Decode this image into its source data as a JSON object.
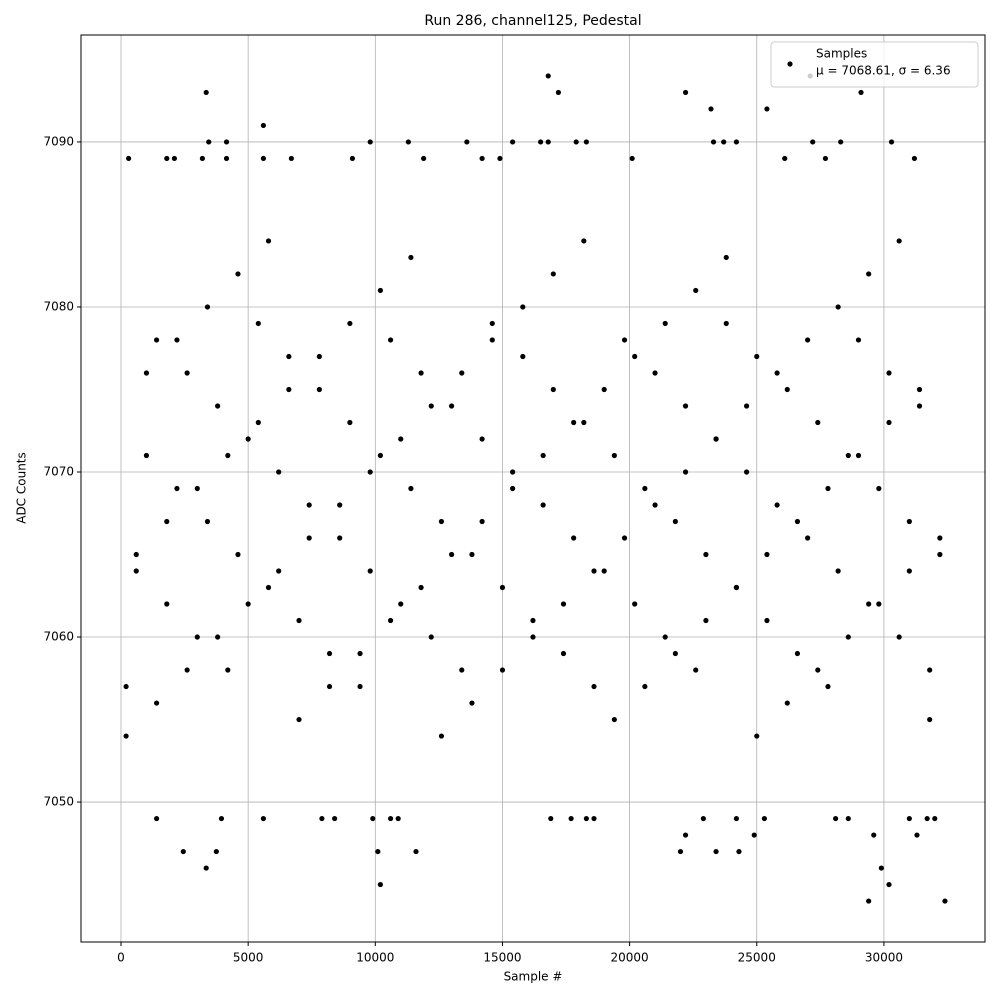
{
  "chart_data": {
    "type": "scatter",
    "title": "Run 286, channel125, Pedestal",
    "x_label": "Sample #",
    "y_label": "ADC Counts",
    "xlim": [
      -1573,
      33975
    ],
    "ylim": [
      7041.52,
      7096.48
    ],
    "xticks": [
      0,
      5000,
      10000,
      15000,
      20000,
      25000,
      30000
    ],
    "yticks": [
      7050,
      7060,
      7070,
      7080,
      7090
    ],
    "grid": true,
    "legend": "upper right",
    "legend_note": "μ = 7068.61, σ = 6.36",
    "x": [
      3350,
      16800,
      17200,
      22200,
      27100,
      29100,
      23200,
      25400,
      5600,
      3350,
      2450,
      3750,
      10200,
      29400,
      30200,
      32400,
      29900,
      22000,
      22200,
      23400,
      24300,
      24900,
      29600,
      31300,
      10100,
      11600,
      3950,
      5600,
      1400,
      7900,
      8400,
      9900,
      10600,
      10900,
      16900,
      17700,
      18300,
      18600,
      22900,
      24200,
      25300,
      28100,
      28600,
      31000,
      31700,
      32000,
      300,
      1800,
      2100,
      3200,
      3450,
      4150,
      4150,
      5600,
      6700,
      9100,
      9800,
      11300,
      11900,
      13600,
      14200,
      14900,
      15400,
      16500,
      16800,
      17900,
      18300,
      20100,
      23300,
      23700,
      24200,
      26100,
      27200,
      27700,
      28300,
      30300,
      31200,
      200,
      600,
      1000,
      1400,
      1800,
      2200,
      2600,
      3000,
      3400,
      3800,
      4200,
      4600,
      5000,
      5400,
      5800,
      6200,
      6600,
      7000,
      7400,
      7800,
      8200,
      8600,
      9000,
      9400,
      9800,
      10200,
      10600,
      11000,
      11400,
      11800,
      12200,
      12600,
      13000,
      13400,
      13800,
      14200,
      14600,
      15000,
      15400,
      15800,
      16200,
      16600,
      17000,
      17400,
      17800,
      18200,
      18600,
      19000,
      19400,
      19800,
      20200,
      20600,
      21000,
      21400,
      21800,
      22200,
      22600,
      23000,
      23400,
      23800,
      24200,
      24600,
      25000,
      25400,
      25800,
      26200,
      26600,
      27000,
      27400,
      27800,
      28200,
      28600,
      29000,
      29400,
      29800,
      30200,
      30600,
      31000,
      31400,
      31800,
      32200,
      200,
      600,
      1000,
      1400,
      1800,
      2200,
      2600,
      3000,
      3400,
      3800,
      4200,
      4600,
      5000,
      5400,
      5800,
      6200,
      6600,
      7000,
      7400,
      7800,
      8200,
      8600,
      9000,
      9400,
      9800,
      10200,
      10600,
      11000,
      11400,
      11800,
      12200,
      12600,
      13000,
      13400,
      13800,
      14200,
      14600,
      15000,
      15400,
      15800,
      16200,
      16600,
      17000,
      17400,
      17800,
      18200,
      18600,
      19000,
      19400,
      19800,
      20200,
      20600,
      21000,
      21400,
      21800,
      22200,
      22600,
      23000,
      23400,
      23800,
      24200,
      24600,
      25000,
      25400,
      25800,
      26200,
      26600,
      27000,
      27400,
      27800,
      28200,
      28600,
      29000,
      29400,
      29800,
      30200,
      30600,
      31000,
      31400,
      31800,
      32200
    ],
    "series": [
      {
        "name": "Samples",
        "color": "#000000",
        "values": [
          7093,
          7094,
          7093,
          7093,
          7094,
          7093,
          7092,
          7092,
          7091,
          7046,
          7047,
          7047,
          7045,
          7044,
          7045,
          7044,
          7046,
          7047,
          7048,
          7047,
          7047,
          7048,
          7048,
          7048,
          7047,
          7047,
          7049,
          7049,
          7049,
          7049,
          7049,
          7049,
          7049,
          7049,
          7049,
          7049,
          7049,
          7049,
          7049,
          7049,
          7049,
          7049,
          7049,
          7049,
          7049,
          7049,
          7089,
          7089,
          7089,
          7089,
          7090,
          7090,
          7089,
          7089,
          7089,
          7089,
          7090,
          7090,
          7089,
          7090,
          7089,
          7089,
          7090,
          7090,
          7090,
          7090,
          7090,
          7089,
          7090,
          7090,
          7090,
          7089,
          7090,
          7089,
          7090,
          7090,
          7089,
          7057,
          7064,
          7071,
          7078,
          7062,
          7069,
          7076,
          7060,
          7067,
          7074,
          7058,
          7065,
          7072,
          7079,
          7063,
          7070,
          7077,
          7061,
          7068,
          7075,
          7059,
          7066,
          7073,
          7057,
          7064,
          7071,
          7078,
          7062,
          7069,
          7076,
          7060,
          7067,
          7074,
          7058,
          7065,
          7072,
          7079,
          7063,
          7070,
          7077,
          7061,
          7068,
          7075,
          7059,
          7066,
          7073,
          7057,
          7064,
          7071,
          7078,
          7062,
          7069,
          7076,
          7060,
          7067,
          7074,
          7058,
          7065,
          7072,
          7079,
          7063,
          7070,
          7077,
          7061,
          7068,
          7075,
          7059,
          7066,
          7073,
          7057,
          7064,
          7071,
          7078,
          7062,
          7069,
          7076,
          7060,
          7067,
          7074,
          7058,
          7065,
          7054,
          7065,
          7076,
          7056,
          7067,
          7078,
          7058,
          7069,
          7080,
          7060,
          7071,
          7082,
          7062,
          7073,
          7084,
          7064,
          7075,
          7055,
          7066,
          7077,
          7057,
          7068,
          7079,
          7059,
          7070,
          7081,
          7061,
          7072,
          7083,
          7063,
          7074,
          7054,
          7065,
          7076,
          7056,
          7067,
          7078,
          7058,
          7069,
          7080,
          7060,
          7071,
          7082,
          7062,
          7073,
          7084,
          7064,
          7075,
          7055,
          7066,
          7077,
          7057,
          7068,
          7079,
          7059,
          7070,
          7081,
          7061,
          7072,
          7083,
          7063,
          7074,
          7054,
          7065,
          7076,
          7056,
          7067,
          7078,
          7058,
          7069,
          7080,
          7060,
          7071,
          7082,
          7062,
          7073,
          7084,
          7064,
          7075,
          7055,
          7066
        ]
      }
    ]
  }
}
